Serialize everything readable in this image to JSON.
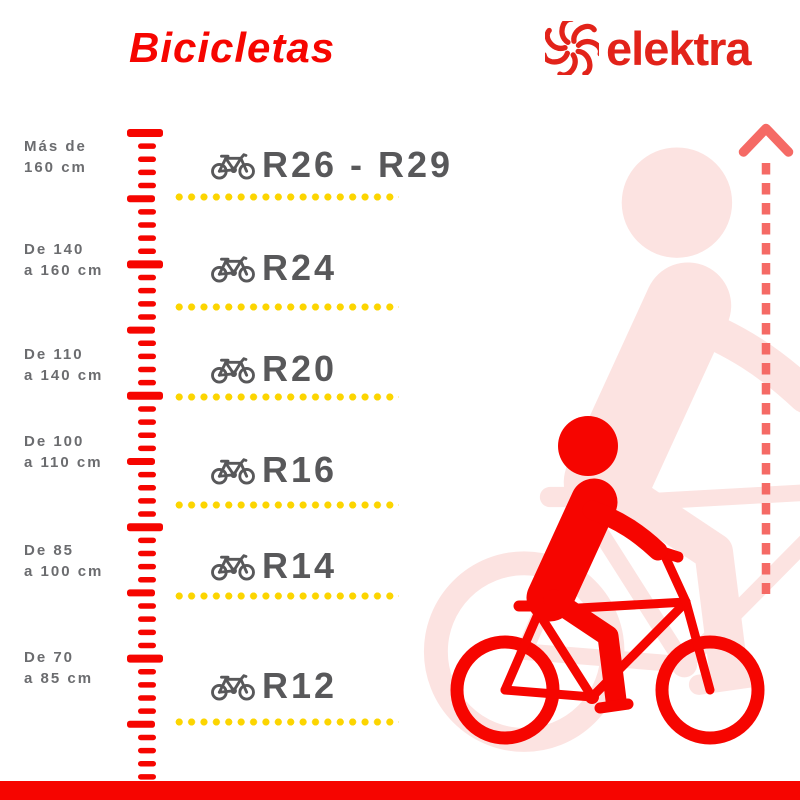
{
  "header": {
    "title": "Bicicletas",
    "brand": "elektra"
  },
  "sizes": [
    {
      "height_label": "Más de\n160 cm",
      "wheel": "R26 - R29"
    },
    {
      "height_label": "De 140\na 160 cm",
      "wheel": "R24"
    },
    {
      "height_label": "De 110\na 140 cm",
      "wheel": "R20"
    },
    {
      "height_label": "De 100\na 110 cm",
      "wheel": "R16"
    },
    {
      "height_label": "De 85\na 100 cm",
      "wheel": "R14"
    },
    {
      "height_label": "De 70\na 85 cm",
      "wheel": "R12"
    }
  ],
  "icons": {
    "brand_icon": "elektra-pinwheel-icon",
    "row_icon": "bicycle-icon",
    "arrow_icon": "dashed-up-arrow-icon",
    "illustration": "cyclist-silhouette"
  },
  "colors": {
    "red": "#f60500",
    "brand-red": "#e2231a",
    "salmon": "#f56a65",
    "pink": "#fce3e1",
    "yellow": "#fcd500",
    "gray-dark": "#58585a",
    "gray-mid": "#6b6c6f"
  }
}
